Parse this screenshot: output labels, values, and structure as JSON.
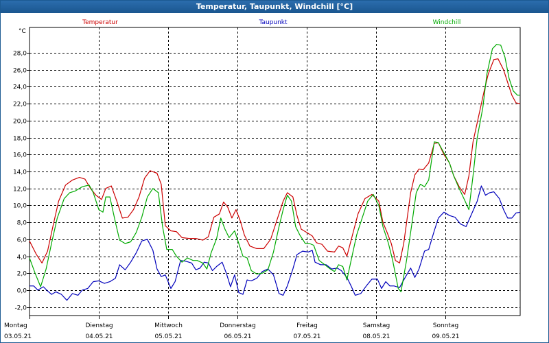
{
  "window": {
    "title": "Temperatur, Taupunkt, Windchill [°C]"
  },
  "chart_data": {
    "type": "line",
    "title": "Temperatur, Taupunkt, Windchill [°C]",
    "yunit": "°C",
    "ylim": [
      -3,
      31
    ],
    "yticks": [
      -2,
      0,
      2,
      4,
      6,
      8,
      10,
      12,
      14,
      16,
      18,
      20,
      22,
      24,
      26,
      28
    ],
    "ytick_labels": [
      "-2,0",
      "0,0",
      "2,0",
      "4,0",
      "6,0",
      "8,0",
      "10,0",
      "12,0",
      "14,0",
      "16,0",
      "18,0",
      "20,0",
      "22,0",
      "24,0",
      "26,0",
      "28,0"
    ],
    "xlim": [
      0,
      7.08
    ],
    "days": [
      {
        "weekday": "Montag",
        "date": "03.05.21"
      },
      {
        "weekday": "Dienstag",
        "date": "04.05.21"
      },
      {
        "weekday": "Mittwoch",
        "date": "05.05.21"
      },
      {
        "weekday": "Donnerstag",
        "date": "06.05.21"
      },
      {
        "weekday": "Freitag",
        "date": "07.05.21"
      },
      {
        "weekday": "Samstag",
        "date": "08.05.21"
      },
      {
        "weekday": "Sonntag",
        "date": "09.05.21"
      }
    ],
    "grid": true,
    "legend_position": "top",
    "series": [
      {
        "name": "Temperatur",
        "color": "#cc0000",
        "points": [
          [
            0.0,
            5.8
          ],
          [
            0.1,
            4.2
          ],
          [
            0.18,
            3.2
          ],
          [
            0.26,
            4.6
          ],
          [
            0.34,
            7.6
          ],
          [
            0.42,
            10.5
          ],
          [
            0.52,
            12.4
          ],
          [
            0.62,
            13.0
          ],
          [
            0.72,
            13.3
          ],
          [
            0.8,
            13.1
          ],
          [
            0.88,
            12.0
          ],
          [
            0.96,
            11.2
          ],
          [
            1.04,
            10.7
          ],
          [
            1.1,
            12.0
          ],
          [
            1.18,
            12.3
          ],
          [
            1.26,
            10.5
          ],
          [
            1.34,
            8.5
          ],
          [
            1.42,
            8.6
          ],
          [
            1.5,
            9.5
          ],
          [
            1.58,
            11.0
          ],
          [
            1.66,
            13.2
          ],
          [
            1.74,
            14.1
          ],
          [
            1.84,
            13.8
          ],
          [
            1.9,
            12.5
          ],
          [
            1.96,
            7.6
          ],
          [
            2.04,
            7.0
          ],
          [
            2.12,
            6.9
          ],
          [
            2.2,
            6.2
          ],
          [
            2.3,
            6.1
          ],
          [
            2.4,
            6.1
          ],
          [
            2.5,
            5.9
          ],
          [
            2.58,
            6.3
          ],
          [
            2.66,
            8.6
          ],
          [
            2.74,
            9.0
          ],
          [
            2.8,
            10.4
          ],
          [
            2.86,
            9.8
          ],
          [
            2.92,
            8.5
          ],
          [
            2.98,
            9.5
          ],
          [
            3.04,
            8.2
          ],
          [
            3.1,
            6.5
          ],
          [
            3.18,
            5.2
          ],
          [
            3.28,
            4.9
          ],
          [
            3.38,
            4.9
          ],
          [
            3.48,
            6.0
          ],
          [
            3.58,
            8.5
          ],
          [
            3.66,
            10.5
          ],
          [
            3.72,
            11.5
          ],
          [
            3.8,
            11.0
          ],
          [
            3.86,
            8.8
          ],
          [
            3.92,
            7.2
          ],
          [
            4.0,
            6.8
          ],
          [
            4.08,
            6.4
          ],
          [
            4.14,
            5.6
          ],
          [
            4.22,
            5.4
          ],
          [
            4.3,
            4.6
          ],
          [
            4.4,
            4.5
          ],
          [
            4.46,
            5.2
          ],
          [
            4.52,
            5.0
          ],
          [
            4.58,
            4.0
          ],
          [
            4.66,
            6.5
          ],
          [
            4.74,
            9.0
          ],
          [
            4.84,
            10.8
          ],
          [
            4.94,
            11.3
          ],
          [
            5.04,
            10.5
          ],
          [
            5.1,
            8.0
          ],
          [
            5.16,
            6.8
          ],
          [
            5.22,
            5.5
          ],
          [
            5.28,
            3.5
          ],
          [
            5.34,
            3.2
          ],
          [
            5.4,
            5.5
          ],
          [
            5.5,
            11.5
          ],
          [
            5.56,
            13.6
          ],
          [
            5.62,
            14.3
          ],
          [
            5.68,
            14.2
          ],
          [
            5.76,
            15.0
          ],
          [
            5.84,
            17.3
          ],
          [
            5.9,
            17.4
          ],
          [
            5.98,
            16.0
          ],
          [
            6.06,
            15.0
          ],
          [
            6.12,
            13.5
          ],
          [
            6.2,
            12.2
          ],
          [
            6.28,
            11.3
          ],
          [
            6.34,
            13.5
          ],
          [
            6.4,
            17.5
          ],
          [
            6.48,
            20.5
          ],
          [
            6.56,
            23.5
          ],
          [
            6.62,
            25.5
          ],
          [
            6.7,
            27.2
          ],
          [
            6.76,
            27.3
          ],
          [
            6.84,
            26.0
          ],
          [
            6.9,
            24.5
          ],
          [
            6.96,
            23.0
          ],
          [
            7.02,
            22.1
          ],
          [
            7.08,
            22.0
          ]
        ]
      },
      {
        "name": "Taupunkt",
        "color": "#0000bb",
        "points": [
          [
            0.0,
            0.5
          ],
          [
            0.06,
            0.5
          ],
          [
            0.12,
            0.0
          ],
          [
            0.2,
            0.4
          ],
          [
            0.26,
            -0.1
          ],
          [
            0.32,
            -0.5
          ],
          [
            0.38,
            -0.2
          ],
          [
            0.46,
            -0.5
          ],
          [
            0.54,
            -1.2
          ],
          [
            0.62,
            -0.4
          ],
          [
            0.7,
            -0.6
          ],
          [
            0.76,
            0.0
          ],
          [
            0.84,
            0.2
          ],
          [
            0.92,
            1.0
          ],
          [
            1.0,
            1.1
          ],
          [
            1.08,
            0.8
          ],
          [
            1.16,
            1.0
          ],
          [
            1.24,
            1.4
          ],
          [
            1.3,
            3.0
          ],
          [
            1.38,
            2.4
          ],
          [
            1.46,
            3.3
          ],
          [
            1.54,
            4.4
          ],
          [
            1.62,
            5.8
          ],
          [
            1.7,
            6.0
          ],
          [
            1.78,
            4.7
          ],
          [
            1.84,
            2.5
          ],
          [
            1.9,
            1.6
          ],
          [
            1.96,
            1.8
          ],
          [
            2.04,
            0.2
          ],
          [
            2.1,
            1.0
          ],
          [
            2.18,
            3.5
          ],
          [
            2.26,
            3.4
          ],
          [
            2.34,
            3.2
          ],
          [
            2.4,
            2.4
          ],
          [
            2.46,
            2.6
          ],
          [
            2.52,
            3.3
          ],
          [
            2.58,
            3.2
          ],
          [
            2.64,
            2.3
          ],
          [
            2.7,
            2.8
          ],
          [
            2.78,
            3.3
          ],
          [
            2.84,
            2.0
          ],
          [
            2.9,
            0.4
          ],
          [
            2.96,
            1.8
          ],
          [
            3.02,
            -0.3
          ],
          [
            3.08,
            -0.5
          ],
          [
            3.14,
            1.2
          ],
          [
            3.2,
            1.1
          ],
          [
            3.28,
            1.4
          ],
          [
            3.36,
            2.2
          ],
          [
            3.44,
            2.5
          ],
          [
            3.52,
            1.8
          ],
          [
            3.6,
            -0.4
          ],
          [
            3.66,
            -0.6
          ],
          [
            3.72,
            0.5
          ],
          [
            3.8,
            2.5
          ],
          [
            3.86,
            4.2
          ],
          [
            3.94,
            4.6
          ],
          [
            4.02,
            4.5
          ],
          [
            4.08,
            4.7
          ],
          [
            4.12,
            3.3
          ],
          [
            4.2,
            3.0
          ],
          [
            4.28,
            3.0
          ],
          [
            4.36,
            2.5
          ],
          [
            4.44,
            2.6
          ],
          [
            4.5,
            2.3
          ],
          [
            4.58,
            1.5
          ],
          [
            4.64,
            0.5
          ],
          [
            4.7,
            -0.6
          ],
          [
            4.78,
            -0.4
          ],
          [
            4.86,
            0.5
          ],
          [
            4.94,
            1.3
          ],
          [
            5.02,
            1.3
          ],
          [
            5.08,
            0.2
          ],
          [
            5.14,
            1.0
          ],
          [
            5.2,
            0.5
          ],
          [
            5.26,
            0.5
          ],
          [
            5.34,
            0.3
          ],
          [
            5.42,
            1.5
          ],
          [
            5.5,
            2.6
          ],
          [
            5.56,
            1.5
          ],
          [
            5.62,
            2.5
          ],
          [
            5.7,
            4.6
          ],
          [
            5.76,
            4.8
          ],
          [
            5.84,
            7.0
          ],
          [
            5.9,
            8.5
          ],
          [
            5.98,
            9.2
          ],
          [
            6.06,
            8.8
          ],
          [
            6.14,
            8.6
          ],
          [
            6.22,
            7.8
          ],
          [
            6.3,
            7.5
          ],
          [
            6.38,
            9.0
          ],
          [
            6.46,
            10.5
          ],
          [
            6.52,
            12.3
          ],
          [
            6.58,
            11.2
          ],
          [
            6.64,
            11.5
          ],
          [
            6.7,
            11.6
          ],
          [
            6.78,
            10.8
          ],
          [
            6.84,
            9.5
          ],
          [
            6.9,
            8.5
          ],
          [
            6.96,
            8.5
          ],
          [
            7.02,
            9.1
          ],
          [
            7.08,
            9.2
          ]
        ]
      },
      {
        "name": "Windchill",
        "color": "#00aa00",
        "points": [
          [
            0.0,
            3.8
          ],
          [
            0.08,
            2.0
          ],
          [
            0.16,
            0.4
          ],
          [
            0.24,
            2.5
          ],
          [
            0.32,
            5.6
          ],
          [
            0.4,
            8.5
          ],
          [
            0.5,
            10.8
          ],
          [
            0.58,
            11.5
          ],
          [
            0.66,
            11.7
          ],
          [
            0.76,
            12.2
          ],
          [
            0.86,
            12.4
          ],
          [
            0.92,
            11.5
          ],
          [
            1.0,
            9.5
          ],
          [
            1.06,
            9.2
          ],
          [
            1.1,
            11.0
          ],
          [
            1.16,
            11.0
          ],
          [
            1.24,
            8.0
          ],
          [
            1.3,
            5.9
          ],
          [
            1.38,
            5.5
          ],
          [
            1.46,
            5.7
          ],
          [
            1.54,
            6.8
          ],
          [
            1.62,
            8.6
          ],
          [
            1.7,
            11.0
          ],
          [
            1.78,
            12.0
          ],
          [
            1.86,
            11.5
          ],
          [
            1.92,
            7.5
          ],
          [
            1.98,
            4.8
          ],
          [
            2.06,
            4.8
          ],
          [
            2.12,
            4.0
          ],
          [
            2.2,
            3.3
          ],
          [
            2.28,
            3.8
          ],
          [
            2.36,
            3.5
          ],
          [
            2.42,
            3.5
          ],
          [
            2.5,
            3.2
          ],
          [
            2.56,
            2.5
          ],
          [
            2.62,
            4.4
          ],
          [
            2.7,
            6.1
          ],
          [
            2.76,
            8.5
          ],
          [
            2.82,
            7.2
          ],
          [
            2.88,
            6.2
          ],
          [
            2.96,
            7.0
          ],
          [
            3.02,
            5.5
          ],
          [
            3.08,
            4.0
          ],
          [
            3.14,
            3.8
          ],
          [
            3.2,
            2.3
          ],
          [
            3.28,
            1.9
          ],
          [
            3.36,
            2.0
          ],
          [
            3.44,
            2.4
          ],
          [
            3.52,
            4.5
          ],
          [
            3.6,
            7.5
          ],
          [
            3.66,
            9.5
          ],
          [
            3.72,
            11.2
          ],
          [
            3.78,
            10.5
          ],
          [
            3.84,
            7.5
          ],
          [
            3.9,
            6.5
          ],
          [
            3.98,
            5.5
          ],
          [
            4.04,
            5.5
          ],
          [
            4.1,
            5.3
          ],
          [
            4.18,
            3.5
          ],
          [
            4.26,
            3.0
          ],
          [
            4.34,
            2.5
          ],
          [
            4.4,
            2.2
          ],
          [
            4.46,
            3.0
          ],
          [
            4.52,
            2.8
          ],
          [
            4.58,
            1.2
          ],
          [
            4.64,
            3.5
          ],
          [
            4.72,
            6.5
          ],
          [
            4.8,
            8.5
          ],
          [
            4.88,
            10.5
          ],
          [
            4.96,
            11.3
          ],
          [
            5.04,
            10.0
          ],
          [
            5.1,
            7.5
          ],
          [
            5.18,
            5.5
          ],
          [
            5.24,
            3.5
          ],
          [
            5.32,
            0.2
          ],
          [
            5.36,
            -0.2
          ],
          [
            5.44,
            3.5
          ],
          [
            5.52,
            8.0
          ],
          [
            5.58,
            11.5
          ],
          [
            5.64,
            12.5
          ],
          [
            5.7,
            12.2
          ],
          [
            5.76,
            13.0
          ],
          [
            5.84,
            17.5
          ],
          [
            5.9,
            17.4
          ],
          [
            5.98,
            16.2
          ],
          [
            6.06,
            15.0
          ],
          [
            6.12,
            13.5
          ],
          [
            6.2,
            12.0
          ],
          [
            6.28,
            10.6
          ],
          [
            6.34,
            9.5
          ],
          [
            6.4,
            13.5
          ],
          [
            6.46,
            18.0
          ],
          [
            6.54,
            21.5
          ],
          [
            6.6,
            25.5
          ],
          [
            6.68,
            28.5
          ],
          [
            6.74,
            29.0
          ],
          [
            6.8,
            28.9
          ],
          [
            6.86,
            27.5
          ],
          [
            6.92,
            25.0
          ],
          [
            6.98,
            23.5
          ],
          [
            7.04,
            23.0
          ],
          [
            7.08,
            23.0
          ]
        ]
      }
    ]
  }
}
